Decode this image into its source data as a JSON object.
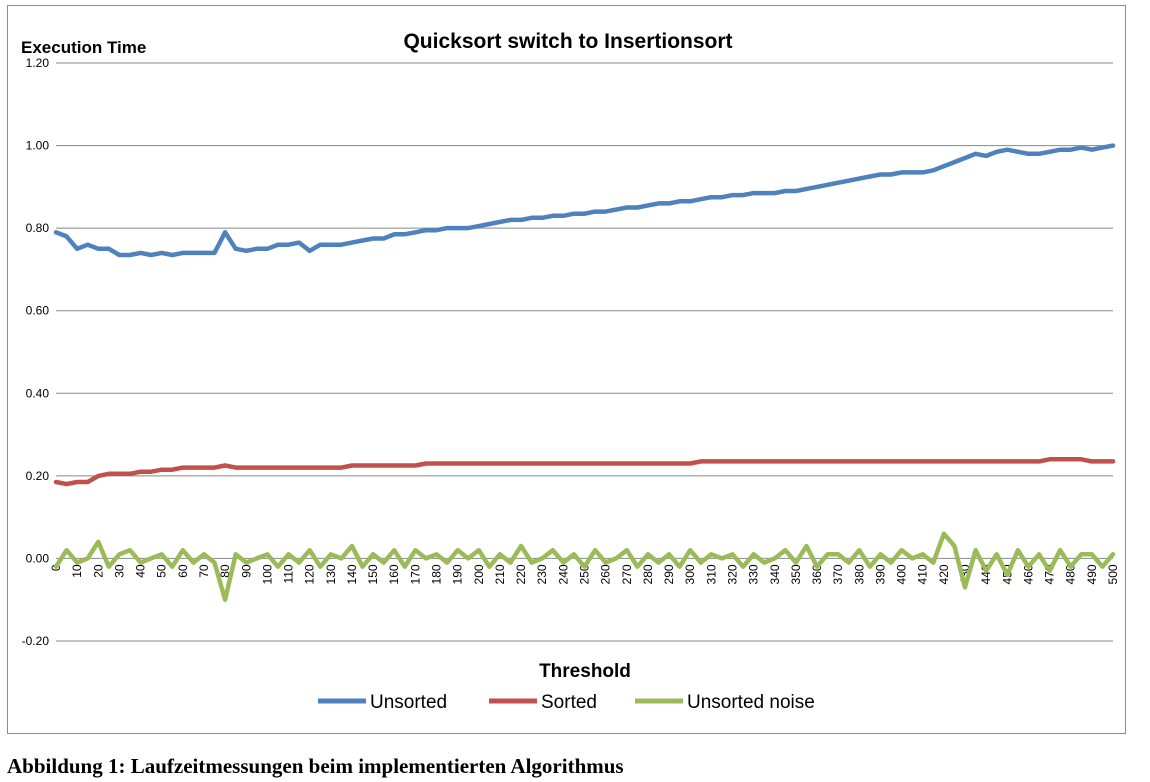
{
  "chart_data": {
    "type": "line",
    "title": "Quicksort switch to Insertionsort",
    "ylabel": "Execution Time",
    "xlabel": "Threshold",
    "ylim": [
      -0.2,
      1.2
    ],
    "xlim": [
      0,
      500
    ],
    "y_ticks": [
      "1.20",
      "1.00",
      "0.80",
      "0.60",
      "0.40",
      "0.20",
      "0.00",
      "-0.20"
    ],
    "y_tick_values": [
      1.2,
      1.0,
      0.8,
      0.6,
      0.4,
      0.2,
      0.0,
      -0.2
    ],
    "x_tick_values": [
      0,
      10,
      20,
      30,
      40,
      50,
      60,
      70,
      80,
      90,
      100,
      110,
      120,
      130,
      140,
      150,
      160,
      170,
      180,
      190,
      200,
      210,
      220,
      230,
      240,
      250,
      260,
      270,
      280,
      290,
      300,
      310,
      320,
      330,
      340,
      350,
      360,
      370,
      380,
      390,
      400,
      410,
      420,
      430,
      440,
      450,
      460,
      470,
      480,
      490,
      500
    ],
    "grid": "horizontal",
    "legend_position": "bottom",
    "series": [
      {
        "name": "Unsorted",
        "color": "#4f81bd",
        "x": [
          0,
          5,
          10,
          15,
          20,
          25,
          30,
          35,
          40,
          45,
          50,
          55,
          60,
          65,
          70,
          75,
          80,
          85,
          90,
          95,
          100,
          105,
          110,
          115,
          120,
          125,
          130,
          135,
          140,
          145,
          150,
          155,
          160,
          165,
          170,
          175,
          180,
          185,
          190,
          195,
          200,
          205,
          210,
          215,
          220,
          225,
          230,
          235,
          240,
          245,
          250,
          255,
          260,
          265,
          270,
          275,
          280,
          285,
          290,
          295,
          300,
          305,
          310,
          315,
          320,
          325,
          330,
          335,
          340,
          345,
          350,
          355,
          360,
          365,
          370,
          375,
          380,
          385,
          390,
          395,
          400,
          405,
          410,
          415,
          420,
          425,
          430,
          435,
          440,
          445,
          450,
          455,
          460,
          465,
          470,
          475,
          480,
          485,
          490,
          495,
          500
        ],
        "values": [
          0.79,
          0.78,
          0.75,
          0.76,
          0.75,
          0.75,
          0.735,
          0.735,
          0.74,
          0.735,
          0.74,
          0.735,
          0.74,
          0.74,
          0.74,
          0.74,
          0.79,
          0.75,
          0.745,
          0.75,
          0.75,
          0.76,
          0.76,
          0.765,
          0.745,
          0.76,
          0.76,
          0.76,
          0.765,
          0.77,
          0.775,
          0.775,
          0.785,
          0.785,
          0.79,
          0.795,
          0.795,
          0.8,
          0.8,
          0.8,
          0.805,
          0.81,
          0.815,
          0.82,
          0.82,
          0.825,
          0.825,
          0.83,
          0.83,
          0.835,
          0.835,
          0.84,
          0.84,
          0.845,
          0.85,
          0.85,
          0.855,
          0.86,
          0.86,
          0.865,
          0.865,
          0.87,
          0.875,
          0.875,
          0.88,
          0.88,
          0.885,
          0.885,
          0.885,
          0.89,
          0.89,
          0.895,
          0.9,
          0.905,
          0.91,
          0.915,
          0.92,
          0.925,
          0.93,
          0.93,
          0.935,
          0.935,
          0.935,
          0.94,
          0.95,
          0.96,
          0.97,
          0.98,
          0.975,
          0.985,
          0.99,
          0.985,
          0.98,
          0.98,
          0.985,
          0.99,
          0.99,
          0.995,
          0.99,
          0.995,
          1.0
        ]
      },
      {
        "name": "Sorted",
        "color": "#c0504d",
        "x": [
          0,
          5,
          10,
          15,
          20,
          25,
          30,
          35,
          40,
          45,
          50,
          55,
          60,
          65,
          70,
          75,
          80,
          85,
          90,
          95,
          100,
          105,
          110,
          115,
          120,
          125,
          130,
          135,
          140,
          145,
          150,
          155,
          160,
          165,
          170,
          175,
          180,
          185,
          190,
          195,
          200,
          205,
          210,
          215,
          220,
          225,
          230,
          235,
          240,
          245,
          250,
          255,
          260,
          265,
          270,
          275,
          280,
          285,
          290,
          295,
          300,
          305,
          310,
          315,
          320,
          325,
          330,
          335,
          340,
          345,
          350,
          355,
          360,
          365,
          370,
          375,
          380,
          385,
          390,
          395,
          400,
          405,
          410,
          415,
          420,
          425,
          430,
          435,
          440,
          445,
          450,
          455,
          460,
          465,
          470,
          475,
          480,
          485,
          490,
          495,
          500
        ],
        "values": [
          0.185,
          0.18,
          0.185,
          0.185,
          0.2,
          0.205,
          0.205,
          0.205,
          0.21,
          0.21,
          0.215,
          0.215,
          0.22,
          0.22,
          0.22,
          0.22,
          0.225,
          0.22,
          0.22,
          0.22,
          0.22,
          0.22,
          0.22,
          0.22,
          0.22,
          0.22,
          0.22,
          0.22,
          0.225,
          0.225,
          0.225,
          0.225,
          0.225,
          0.225,
          0.225,
          0.23,
          0.23,
          0.23,
          0.23,
          0.23,
          0.23,
          0.23,
          0.23,
          0.23,
          0.23,
          0.23,
          0.23,
          0.23,
          0.23,
          0.23,
          0.23,
          0.23,
          0.23,
          0.23,
          0.23,
          0.23,
          0.23,
          0.23,
          0.23,
          0.23,
          0.23,
          0.235,
          0.235,
          0.235,
          0.235,
          0.235,
          0.235,
          0.235,
          0.235,
          0.235,
          0.235,
          0.235,
          0.235,
          0.235,
          0.235,
          0.235,
          0.235,
          0.235,
          0.235,
          0.235,
          0.235,
          0.235,
          0.235,
          0.235,
          0.235,
          0.235,
          0.235,
          0.235,
          0.235,
          0.235,
          0.235,
          0.235,
          0.235,
          0.235,
          0.24,
          0.24,
          0.24,
          0.24,
          0.235,
          0.235,
          0.235
        ]
      },
      {
        "name": "Unsorted noise",
        "color": "#9bbb59",
        "x": [
          0,
          5,
          10,
          15,
          20,
          25,
          30,
          35,
          40,
          45,
          50,
          55,
          60,
          65,
          70,
          75,
          80,
          85,
          90,
          95,
          100,
          105,
          110,
          115,
          120,
          125,
          130,
          135,
          140,
          145,
          150,
          155,
          160,
          165,
          170,
          175,
          180,
          185,
          190,
          195,
          200,
          205,
          210,
          215,
          220,
          225,
          230,
          235,
          240,
          245,
          250,
          255,
          260,
          265,
          270,
          275,
          280,
          285,
          290,
          295,
          300,
          305,
          310,
          315,
          320,
          325,
          330,
          335,
          340,
          345,
          350,
          355,
          360,
          365,
          370,
          375,
          380,
          385,
          390,
          395,
          400,
          405,
          410,
          415,
          420,
          425,
          430,
          435,
          440,
          445,
          450,
          455,
          460,
          465,
          470,
          475,
          480,
          485,
          490,
          495,
          500
        ],
        "values": [
          -0.02,
          0.02,
          -0.01,
          0.0,
          0.04,
          -0.02,
          0.01,
          0.02,
          -0.01,
          0.0,
          0.01,
          -0.02,
          0.02,
          -0.01,
          0.01,
          -0.01,
          -0.1,
          0.01,
          -0.01,
          0.0,
          0.01,
          -0.02,
          0.01,
          -0.01,
          0.02,
          -0.02,
          0.01,
          0.0,
          0.03,
          -0.02,
          0.01,
          -0.01,
          0.02,
          -0.02,
          0.02,
          0.0,
          0.01,
          -0.01,
          0.02,
          0.0,
          0.02,
          -0.02,
          0.01,
          -0.01,
          0.03,
          -0.01,
          0.0,
          0.02,
          -0.01,
          0.01,
          -0.02,
          0.02,
          -0.01,
          0.0,
          0.02,
          -0.02,
          0.01,
          -0.01,
          0.01,
          -0.02,
          0.02,
          -0.01,
          0.01,
          0.0,
          0.01,
          -0.02,
          0.01,
          -0.01,
          0.0,
          0.02,
          -0.01,
          0.03,
          -0.02,
          0.01,
          0.01,
          -0.01,
          0.02,
          -0.02,
          0.01,
          -0.01,
          0.02,
          0.0,
          0.01,
          -0.01,
          0.06,
          0.03,
          -0.07,
          0.02,
          -0.03,
          0.01,
          -0.04,
          0.02,
          -0.02,
          0.01,
          -0.03,
          0.02,
          -0.02,
          0.01,
          0.01,
          -0.02,
          0.01
        ]
      }
    ]
  },
  "caption": "Abbildung 1: Laufzeitmessungen beim implementierten Algorithmus"
}
